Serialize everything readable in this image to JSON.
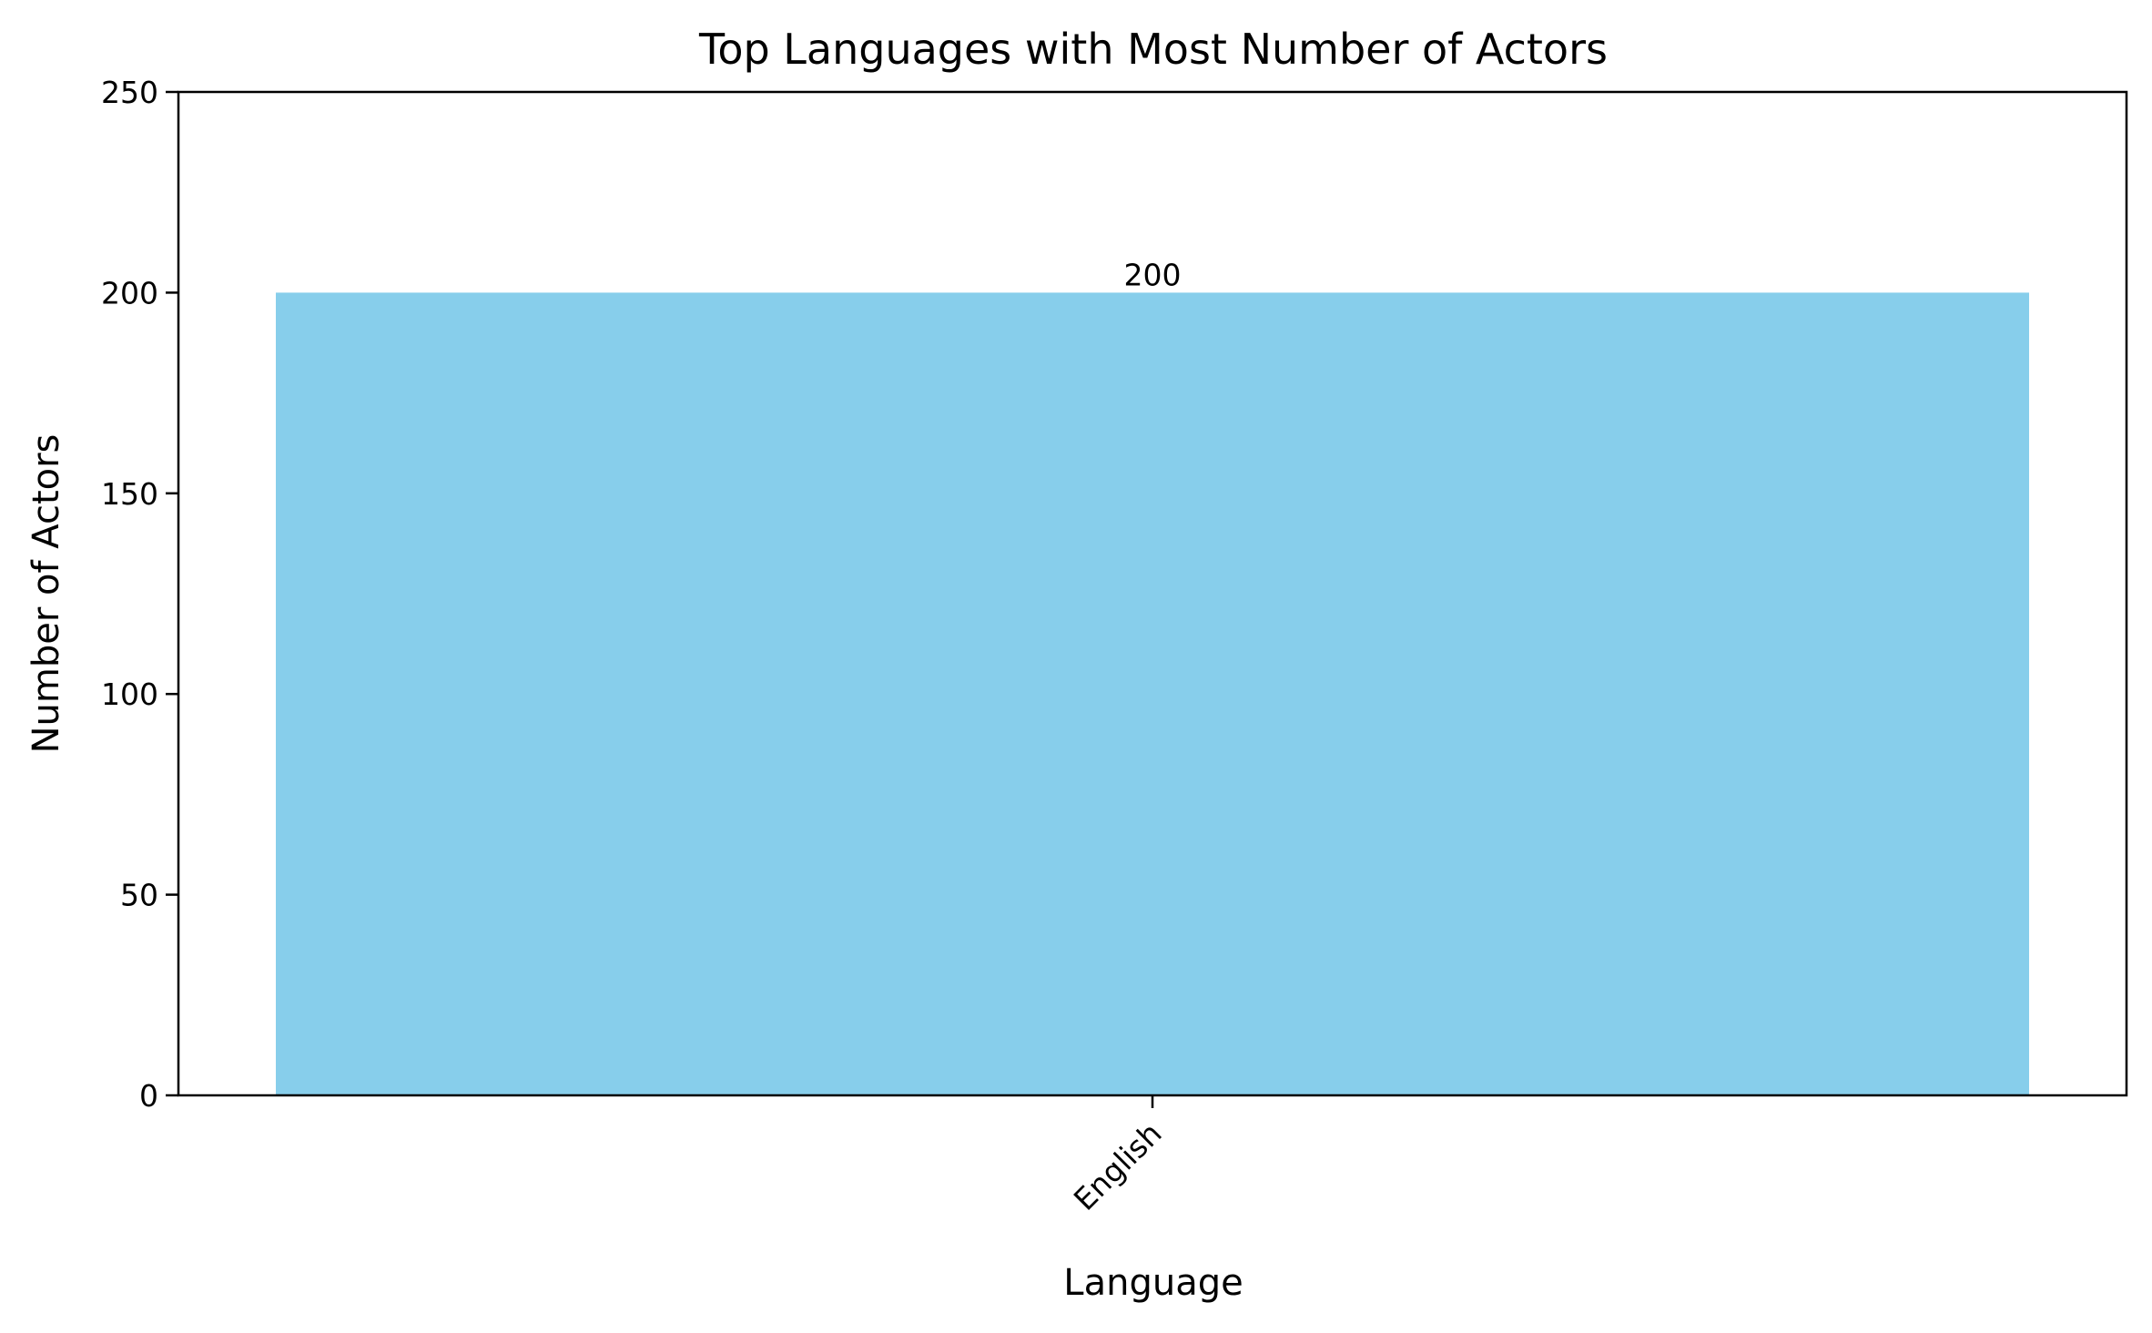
{
  "chart_data": {
    "type": "bar",
    "title": "Top Languages with Most Number of Actors",
    "xlabel": "Language",
    "ylabel": "Number of Actors",
    "categories": [
      "English"
    ],
    "values": [
      200
    ],
    "data_labels": [
      "200"
    ],
    "ylim": [
      0,
      250
    ],
    "yticks": [
      0,
      50,
      100,
      150,
      200,
      250
    ],
    "grid": false,
    "legend": "none",
    "bar_color": "#87CEEB",
    "xtick_rotation": -45
  }
}
